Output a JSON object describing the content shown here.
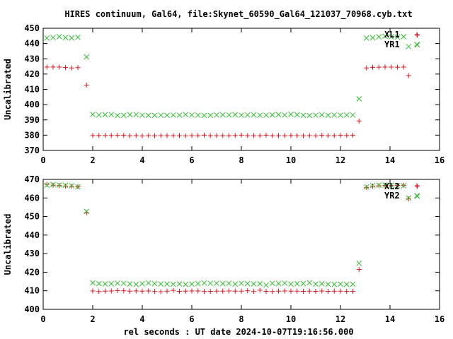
{
  "title": "HIRES continuum, Gal64, file:Skynet_60590_Gal64_121037_70968.cyb.txt",
  "xlabel": "rel seconds : UT date 2024-10-07T19:16:56.000",
  "colors": {
    "plus": "#e0151c",
    "cross": "#2ebd2e",
    "axis": "#000000"
  },
  "chart_data": [
    {
      "type": "scatter",
      "ylabel": "Uncalibrated",
      "xlim": [
        0,
        16
      ],
      "ylim": [
        370,
        450
      ],
      "x_ticks": [
        0,
        2,
        4,
        6,
        8,
        10,
        12,
        14,
        16
      ],
      "y_ticks": [
        370,
        380,
        390,
        400,
        410,
        420,
        430,
        440,
        450
      ],
      "grid": false,
      "legend_position": "top-right",
      "series": [
        {
          "name": "XL1",
          "marker": "plus",
          "points": [
            [
              0.15,
              424.6
            ],
            [
              0.4,
              424.6
            ],
            [
              0.65,
              424.6
            ],
            [
              0.9,
              424.3
            ],
            [
              1.15,
              424.0
            ],
            [
              1.4,
              424.2
            ],
            [
              1.75,
              412.8
            ],
            [
              2.0,
              379.8
            ],
            [
              2.25,
              379.8
            ],
            [
              2.5,
              379.8
            ],
            [
              2.75,
              379.8
            ],
            [
              3.0,
              379.9
            ],
            [
              3.25,
              379.9
            ],
            [
              3.5,
              379.6
            ],
            [
              3.75,
              379.7
            ],
            [
              4.0,
              379.5
            ],
            [
              4.25,
              379.7
            ],
            [
              4.5,
              379.6
            ],
            [
              4.75,
              379.7
            ],
            [
              5.0,
              379.7
            ],
            [
              5.25,
              379.7
            ],
            [
              5.5,
              379.7
            ],
            [
              5.75,
              379.6
            ],
            [
              6.0,
              379.7
            ],
            [
              6.25,
              379.7
            ],
            [
              6.5,
              380.0
            ],
            [
              6.75,
              379.7
            ],
            [
              7.0,
              379.7
            ],
            [
              7.25,
              379.7
            ],
            [
              7.5,
              379.7
            ],
            [
              7.75,
              379.8
            ],
            [
              8.0,
              380.0
            ],
            [
              8.25,
              379.7
            ],
            [
              8.5,
              379.7
            ],
            [
              8.75,
              379.7
            ],
            [
              9.0,
              380.0
            ],
            [
              9.25,
              379.7
            ],
            [
              9.5,
              379.7
            ],
            [
              9.75,
              379.7
            ],
            [
              10.0,
              379.8
            ],
            [
              10.25,
              379.7
            ],
            [
              10.5,
              379.6
            ],
            [
              10.75,
              379.7
            ],
            [
              11.0,
              379.6
            ],
            [
              11.25,
              379.9
            ],
            [
              11.5,
              379.7
            ],
            [
              11.75,
              379.7
            ],
            [
              12.0,
              379.9
            ],
            [
              12.25,
              379.8
            ],
            [
              12.5,
              379.9
            ],
            [
              12.75,
              389.3
            ],
            [
              13.05,
              424.0
            ],
            [
              13.3,
              424.4
            ],
            [
              13.55,
              424.5
            ],
            [
              13.8,
              424.6
            ],
            [
              14.05,
              424.6
            ],
            [
              14.3,
              424.5
            ],
            [
              14.55,
              424.6
            ],
            [
              14.75,
              419.0
            ],
            [
              15.1,
              445.5
            ]
          ]
        },
        {
          "name": "YR1",
          "marker": "cross",
          "points": [
            [
              0.15,
              443.6
            ],
            [
              0.4,
              443.9
            ],
            [
              0.65,
              444.5
            ],
            [
              0.9,
              443.8
            ],
            [
              1.15,
              443.7
            ],
            [
              1.4,
              444.1
            ],
            [
              1.75,
              431.2
            ],
            [
              2.0,
              393.6
            ],
            [
              2.25,
              393.2
            ],
            [
              2.5,
              393.4
            ],
            [
              2.75,
              393.5
            ],
            [
              3.0,
              392.9
            ],
            [
              3.25,
              393.0
            ],
            [
              3.5,
              393.4
            ],
            [
              3.75,
              393.5
            ],
            [
              4.0,
              393.1
            ],
            [
              4.25,
              393.0
            ],
            [
              4.5,
              393.0
            ],
            [
              4.75,
              393.1
            ],
            [
              5.0,
              393.0
            ],
            [
              5.25,
              393.2
            ],
            [
              5.5,
              393.1
            ],
            [
              5.75,
              393.5
            ],
            [
              6.0,
              393.2
            ],
            [
              6.25,
              393.1
            ],
            [
              6.5,
              392.9
            ],
            [
              6.75,
              393.0
            ],
            [
              7.0,
              393.2
            ],
            [
              7.25,
              393.3
            ],
            [
              7.5,
              393.2
            ],
            [
              7.75,
              393.4
            ],
            [
              8.0,
              393.1
            ],
            [
              8.25,
              393.2
            ],
            [
              8.5,
              393.3
            ],
            [
              8.75,
              393.1
            ],
            [
              9.0,
              393.1
            ],
            [
              9.25,
              393.3
            ],
            [
              9.5,
              393.4
            ],
            [
              9.75,
              393.2
            ],
            [
              10.0,
              393.6
            ],
            [
              10.25,
              393.4
            ],
            [
              10.5,
              393.0
            ],
            [
              10.75,
              392.9
            ],
            [
              11.0,
              393.1
            ],
            [
              11.25,
              393.3
            ],
            [
              11.5,
              393.0
            ],
            [
              11.75,
              393.2
            ],
            [
              12.0,
              393.1
            ],
            [
              12.25,
              393.2
            ],
            [
              12.5,
              393.2
            ],
            [
              12.75,
              403.8
            ],
            [
              13.05,
              443.6
            ],
            [
              13.3,
              443.8
            ],
            [
              13.55,
              444.4
            ],
            [
              13.8,
              444.8
            ],
            [
              14.05,
              444.4
            ],
            [
              14.3,
              444.2
            ],
            [
              14.55,
              444.5
            ],
            [
              14.75,
              438.0
            ],
            [
              15.1,
              439.1
            ]
          ]
        }
      ]
    },
    {
      "type": "scatter",
      "ylabel": "Uncalibrated",
      "xlim": [
        0,
        16
      ],
      "ylim": [
        400,
        470
      ],
      "x_ticks": [
        0,
        2,
        4,
        6,
        8,
        10,
        12,
        14,
        16
      ],
      "y_ticks": [
        400,
        410,
        420,
        430,
        440,
        450,
        460,
        470
      ],
      "grid": false,
      "legend_position": "top-right",
      "series": [
        {
          "name": "XL2",
          "marker": "plus",
          "points": [
            [
              0.15,
              467.3
            ],
            [
              0.4,
              466.9
            ],
            [
              0.65,
              466.7
            ],
            [
              0.9,
              466.4
            ],
            [
              1.15,
              466.3
            ],
            [
              1.4,
              466.0
            ],
            [
              1.75,
              452.0
            ],
            [
              2.0,
              409.9
            ],
            [
              2.25,
              409.6
            ],
            [
              2.5,
              409.8
            ],
            [
              2.75,
              409.9
            ],
            [
              3.0,
              410.1
            ],
            [
              3.25,
              410.0
            ],
            [
              3.5,
              409.8
            ],
            [
              3.75,
              409.9
            ],
            [
              4.0,
              409.8
            ],
            [
              4.25,
              409.9
            ],
            [
              4.5,
              409.6
            ],
            [
              4.75,
              409.5
            ],
            [
              5.0,
              409.8
            ],
            [
              5.25,
              410.2
            ],
            [
              5.5,
              409.7
            ],
            [
              5.75,
              409.8
            ],
            [
              6.0,
              409.9
            ],
            [
              6.25,
              409.9
            ],
            [
              6.5,
              409.6
            ],
            [
              6.75,
              409.7
            ],
            [
              7.0,
              409.8
            ],
            [
              7.25,
              409.8
            ],
            [
              7.5,
              409.9
            ],
            [
              7.75,
              409.8
            ],
            [
              8.0,
              409.8
            ],
            [
              8.25,
              410.0
            ],
            [
              8.5,
              409.6
            ],
            [
              8.75,
              410.3
            ],
            [
              9.0,
              409.7
            ],
            [
              9.25,
              409.6
            ],
            [
              9.5,
              409.8
            ],
            [
              9.75,
              409.9
            ],
            [
              10.0,
              409.8
            ],
            [
              10.25,
              409.8
            ],
            [
              10.5,
              409.7
            ],
            [
              10.75,
              409.8
            ],
            [
              11.0,
              409.7
            ],
            [
              11.25,
              409.9
            ],
            [
              11.5,
              409.7
            ],
            [
              11.75,
              409.8
            ],
            [
              12.0,
              409.8
            ],
            [
              12.25,
              409.7
            ],
            [
              12.5,
              409.7
            ],
            [
              12.75,
              421.5
            ],
            [
              13.05,
              465.6
            ],
            [
              13.3,
              466.4
            ],
            [
              13.55,
              466.6
            ],
            [
              13.8,
              466.8
            ],
            [
              14.05,
              466.7
            ],
            [
              14.3,
              466.8
            ],
            [
              14.55,
              466.8
            ],
            [
              14.75,
              459.5
            ],
            [
              15.1,
              466.3
            ]
          ]
        },
        {
          "name": "YR2",
          "marker": "cross",
          "points": [
            [
              0.15,
              466.9
            ],
            [
              0.4,
              467.2
            ],
            [
              0.65,
              467.0
            ],
            [
              0.9,
              466.8
            ],
            [
              1.15,
              466.6
            ],
            [
              1.4,
              466.0
            ],
            [
              1.75,
              452.8
            ],
            [
              2.0,
              414.3
            ],
            [
              2.25,
              413.9
            ],
            [
              2.5,
              413.7
            ],
            [
              2.75,
              413.8
            ],
            [
              3.0,
              414.1
            ],
            [
              3.25,
              414.0
            ],
            [
              3.5,
              413.7
            ],
            [
              3.75,
              413.4
            ],
            [
              4.0,
              413.8
            ],
            [
              4.25,
              414.2
            ],
            [
              4.5,
              413.9
            ],
            [
              4.75,
              413.7
            ],
            [
              5.0,
              413.6
            ],
            [
              5.25,
              413.5
            ],
            [
              5.5,
              413.7
            ],
            [
              5.75,
              413.4
            ],
            [
              6.0,
              413.6
            ],
            [
              6.25,
              413.9
            ],
            [
              6.5,
              414.2
            ],
            [
              6.75,
              414.0
            ],
            [
              7.0,
              414.1
            ],
            [
              7.25,
              413.9
            ],
            [
              7.5,
              414.0
            ],
            [
              7.75,
              413.6
            ],
            [
              8.0,
              414.0
            ],
            [
              8.25,
              413.9
            ],
            [
              8.5,
              413.7
            ],
            [
              8.75,
              413.8
            ],
            [
              9.0,
              413.1
            ],
            [
              9.25,
              414.0
            ],
            [
              9.5,
              413.9
            ],
            [
              9.75,
              414.1
            ],
            [
              10.0,
              413.6
            ],
            [
              10.25,
              413.8
            ],
            [
              10.5,
              413.9
            ],
            [
              10.75,
              414.3
            ],
            [
              11.0,
              413.6
            ],
            [
              11.25,
              413.8
            ],
            [
              11.5,
              413.5
            ],
            [
              11.75,
              413.4
            ],
            [
              12.0,
              413.6
            ],
            [
              12.25,
              413.4
            ],
            [
              12.5,
              413.5
            ],
            [
              12.75,
              424.8
            ],
            [
              13.05,
              465.9
            ],
            [
              13.3,
              466.7
            ],
            [
              13.55,
              466.9
            ],
            [
              13.8,
              466.9
            ],
            [
              14.05,
              466.8
            ],
            [
              14.3,
              466.6
            ],
            [
              14.55,
              466.6
            ],
            [
              14.75,
              460.0
            ],
            [
              15.1,
              460.9
            ]
          ]
        }
      ]
    }
  ]
}
